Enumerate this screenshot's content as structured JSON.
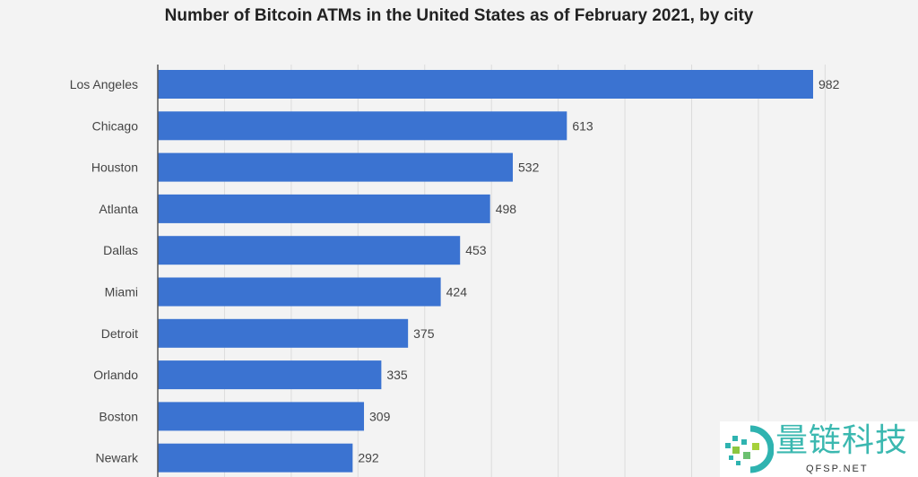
{
  "chart_data": {
    "type": "bar",
    "orientation": "horizontal",
    "title": "Number of Bitcoin ATMs in the United States as of February 2021, by city",
    "categories": [
      "Los Angeles",
      "Chicago",
      "Houston",
      "Atlanta",
      "Dallas",
      "Miami",
      "Detroit",
      "Orlando",
      "Boston",
      "Newark"
    ],
    "values": [
      982,
      613,
      532,
      498,
      453,
      424,
      375,
      335,
      309,
      292
    ],
    "xlim": [
      0,
      1000
    ],
    "grid": true,
    "bar_color": "#3b73d1"
  },
  "watermark": {
    "text": "量链科技",
    "sub": "QFSP.NET"
  }
}
